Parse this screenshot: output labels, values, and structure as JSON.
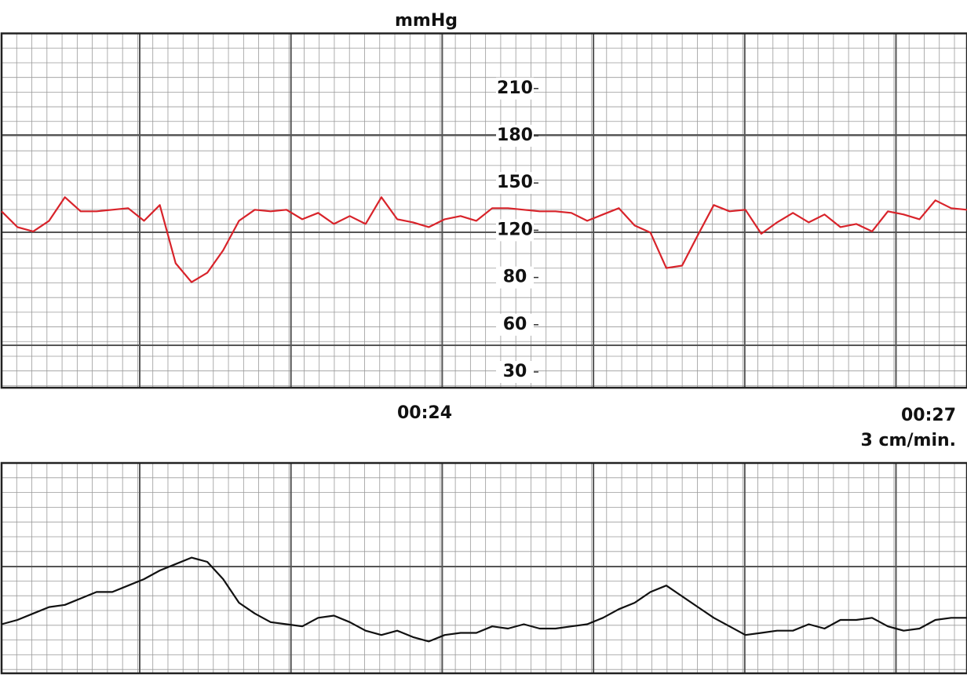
{
  "chart_data": [
    {
      "type": "line",
      "y_label": "mmHg",
      "ylim": [
        20,
        245
      ],
      "yticks": [
        30,
        60,
        80,
        120,
        150,
        180,
        210
      ],
      "grid": true,
      "series": [
        {
          "color": "#d8232a",
          "values": [
            132,
            122,
            119,
            126,
            141,
            132,
            132,
            133,
            134,
            126,
            136,
            92,
            78,
            84,
            103,
            126,
            133,
            132,
            133,
            127,
            131,
            124,
            129,
            124,
            141,
            127,
            125,
            122,
            127,
            129,
            126,
            134,
            134,
            133,
            132,
            132,
            131,
            126,
            130,
            134,
            123,
            118,
            88,
            90,
            116,
            136,
            132,
            133,
            117,
            125,
            131,
            125,
            130,
            122,
            124,
            119,
            132,
            130,
            127,
            139,
            134,
            133
          ]
        }
      ],
      "x_labels": [
        "00:24",
        "00:27"
      ],
      "speed": "3 cm/min."
    },
    {
      "type": "line",
      "ylim": [
        0,
        100
      ],
      "grid": true,
      "series": [
        {
          "color": "#111111",
          "values": [
            25,
            27,
            30,
            33,
            34,
            37,
            40,
            40,
            43,
            46,
            50,
            53,
            56,
            54,
            46,
            35,
            30,
            26,
            25,
            24,
            28,
            29,
            26,
            22,
            20,
            22,
            19,
            17,
            20,
            21,
            21,
            24,
            23,
            25,
            23,
            23,
            24,
            25,
            28,
            32,
            35,
            40,
            43,
            38,
            33,
            28,
            24,
            20,
            21,
            22,
            22,
            25,
            23,
            27,
            27,
            28,
            24,
            22,
            23,
            27,
            28,
            28
          ]
        }
      ]
    }
  ]
}
